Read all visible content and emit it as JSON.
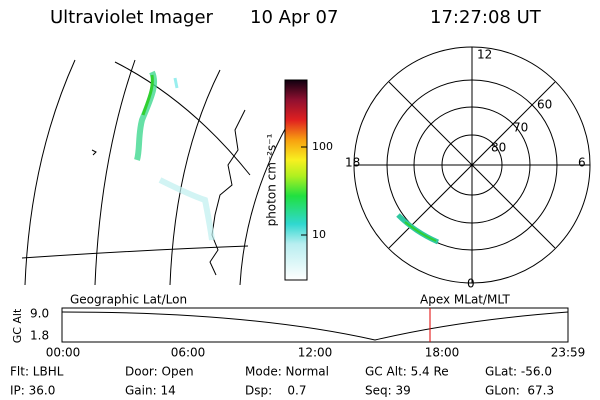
{
  "header": {
    "instrument": "Ultraviolet Imager",
    "date": "10 Apr 07",
    "time": "17:27:08 UT"
  },
  "colorbar": {
    "label": "photon cm⁻²s⁻¹",
    "ticks": [
      "100",
      "10"
    ]
  },
  "polar": {
    "mlt_labels": [
      "12",
      "18",
      "6",
      "0"
    ],
    "lat_labels": [
      "60",
      "70",
      "80"
    ]
  },
  "timeline": {
    "left_title": "Geographic Lat/Lon",
    "right_title": "Apex MLat/MLT",
    "axis_label": "GC Alt",
    "y_labels": [
      "9.0",
      "1.8"
    ],
    "time_labels": [
      "00:00",
      "06:00",
      "12:00",
      "18:00",
      "23:59"
    ]
  },
  "footer": {
    "rows": [
      [
        "Flt: LBHL",
        "Door: Open",
        "Mode: Normal",
        "GC Alt: 5.4 Re",
        "GLat: -56.0"
      ],
      [
        "IP: 36.0",
        "Gain: 14",
        "Dsp:    0.7",
        "Seq: 39",
        "GLon:  67.3"
      ]
    ]
  }
}
